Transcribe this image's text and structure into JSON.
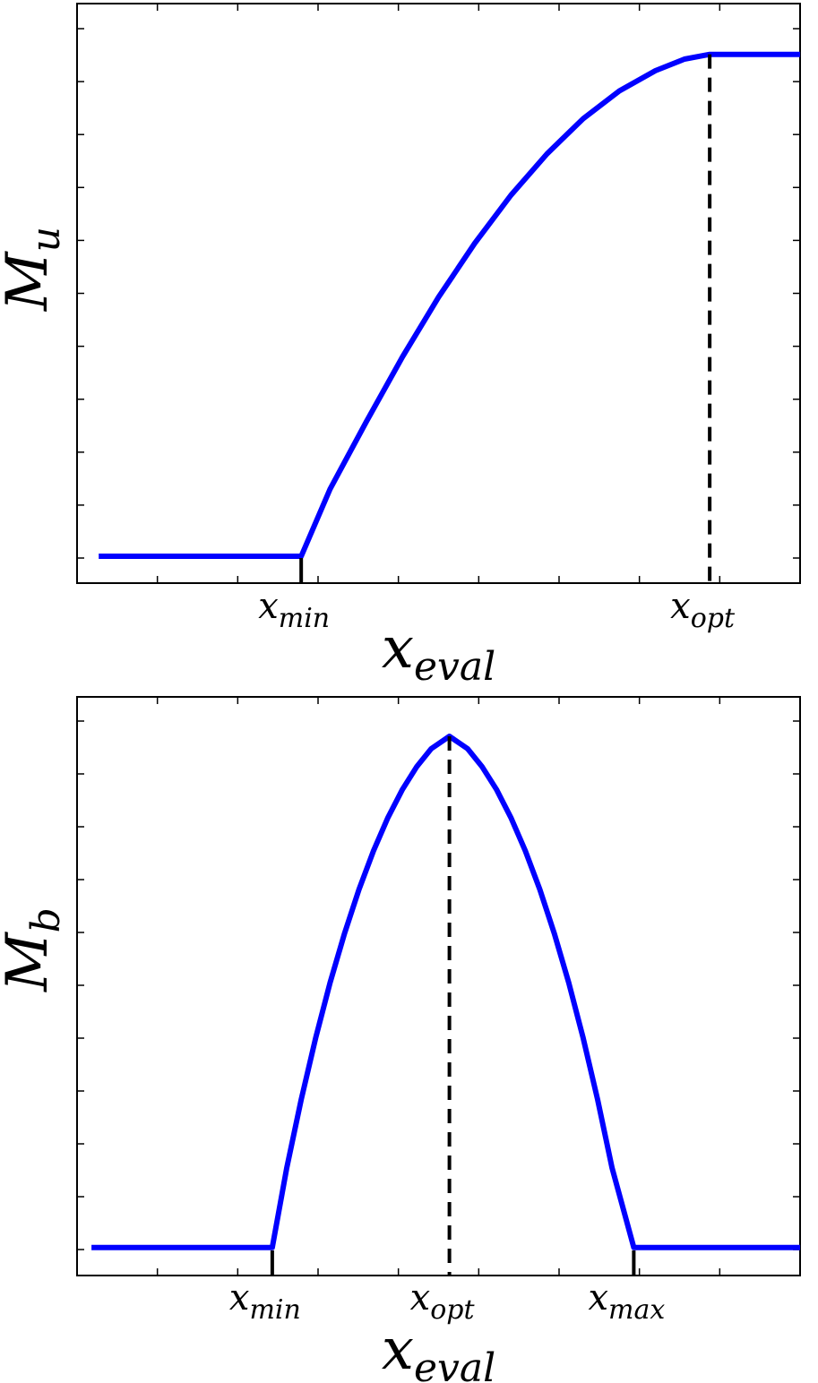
{
  "chart_data": [
    {
      "type": "line",
      "title": "",
      "ylabel_main": "M",
      "ylabel_sub": "u",
      "xlabel_main": "x",
      "xlabel_sub": "eval",
      "xlim": [
        0,
        100
      ],
      "ylim": [
        0,
        1
      ],
      "grid": false,
      "x_ticks_count": 8,
      "y_ticks_count": 11,
      "markers": [
        {
          "main": "x",
          "sub": "min",
          "x": 31,
          "dashed": false
        },
        {
          "main": "x",
          "sub": "opt",
          "x": 87.5,
          "dashed": true
        }
      ],
      "series": [
        {
          "color": "#0000ff",
          "x": [
            3,
            31,
            35,
            40,
            45,
            50,
            55,
            60,
            65,
            70,
            75,
            80,
            84,
            87.5,
            100
          ],
          "y": [
            0.0526,
            0.0526,
            0.1842,
            0.3158,
            0.443,
            0.5599,
            0.6652,
            0.7592,
            0.8405,
            0.9092,
            0.9636,
            1.0031,
            1.0257,
            1.0351,
            1.0351
          ]
        }
      ]
    },
    {
      "type": "line",
      "title": "",
      "ylabel_main": "M",
      "ylabel_sub": "b",
      "xlabel_main": "x",
      "xlabel_sub": "eval",
      "xlim": [
        0,
        100
      ],
      "ylim": [
        0,
        1
      ],
      "grid": false,
      "x_ticks_count": 8,
      "y_ticks_count": 11,
      "markers": [
        {
          "main": "x",
          "sub": "min",
          "x": 27,
          "dashed": false
        },
        {
          "main": "x",
          "sub": "opt",
          "x": 51.5,
          "dashed": true
        },
        {
          "main": "x",
          "sub": "max",
          "x": 77,
          "dashed": false
        }
      ],
      "series": [
        {
          "color": "#0000ff",
          "x": [
            2,
            27,
            29,
            31,
            33,
            35,
            37,
            39,
            41,
            43,
            45,
            47,
            49,
            51.5,
            54,
            56,
            58,
            60,
            62,
            64,
            66,
            68,
            70,
            72,
            74,
            77,
            100
          ],
          "y": [
            0.0526,
            0.0526,
            0.2015,
            0.3303,
            0.4456,
            0.5494,
            0.6422,
            0.7245,
            0.797,
            0.8594,
            0.9121,
            0.9551,
            0.9885,
            1.0118,
            0.9885,
            0.9551,
            0.9121,
            0.8594,
            0.797,
            0.7245,
            0.6422,
            0.5494,
            0.4456,
            0.3303,
            0.2015,
            0.0526,
            0.0526
          ]
        }
      ]
    }
  ]
}
